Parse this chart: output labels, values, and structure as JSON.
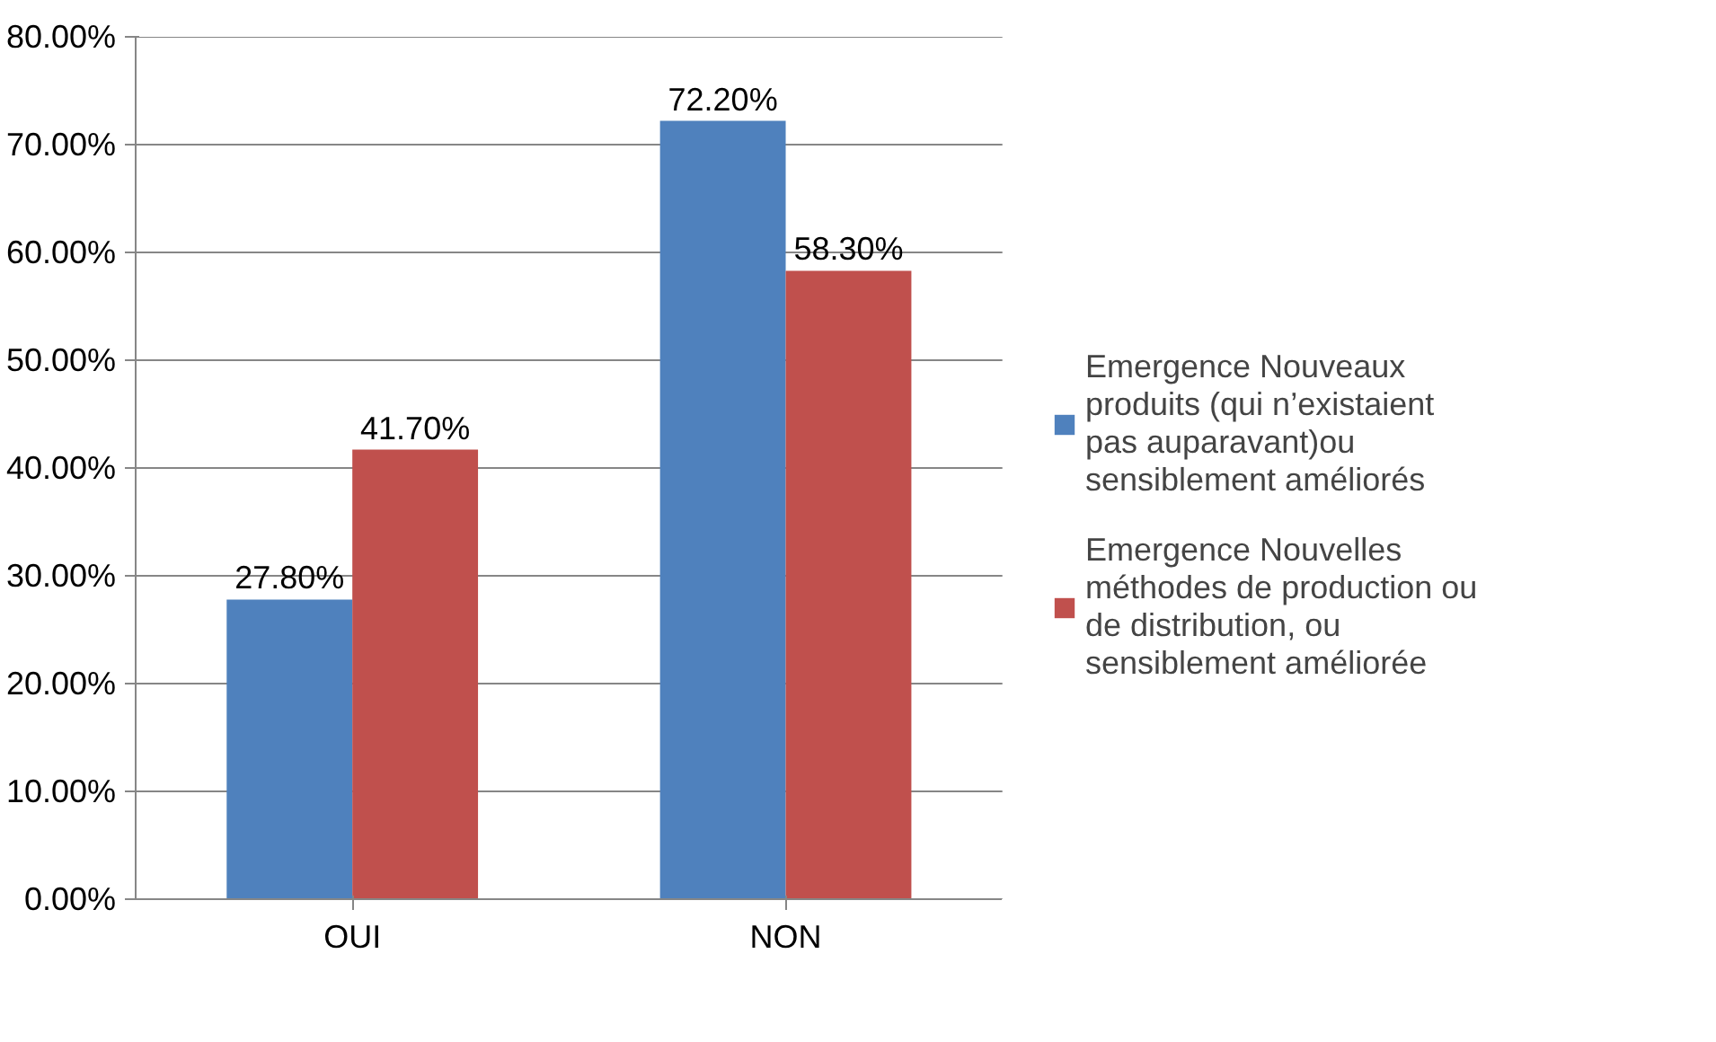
{
  "chart_data": {
    "type": "bar",
    "categories": [
      "OUI",
      "NON"
    ],
    "series": [
      {
        "name": "Emergence Nouveaux produits (qui n’existaient pas auparavant)ou sensiblement améliorés",
        "color": "#4f81bd",
        "values": [
          27.8,
          72.2
        ],
        "value_labels": [
          "27.80%",
          "72.20%"
        ]
      },
      {
        "name": "Emergence Nouvelles méthodes de production ou de distribution, ou sensiblement améliorée",
        "color": "#c0504d",
        "values": [
          41.7,
          58.3
        ],
        "value_labels": [
          "41.70%",
          "58.30%"
        ]
      }
    ],
    "ylim": [
      0,
      80
    ],
    "yticks": [
      {
        "value": 0,
        "label": "0.00%"
      },
      {
        "value": 10,
        "label": "10.00%"
      },
      {
        "value": 20,
        "label": "20.00%"
      },
      {
        "value": 30,
        "label": "30.00%"
      },
      {
        "value": 40,
        "label": "40.00%"
      },
      {
        "value": 50,
        "label": "50.00%"
      },
      {
        "value": 60,
        "label": "60.00%"
      },
      {
        "value": 70,
        "label": "70.00%"
      },
      {
        "value": 80,
        "label": "80.00%"
      }
    ],
    "grid": "y",
    "legend": "right"
  }
}
